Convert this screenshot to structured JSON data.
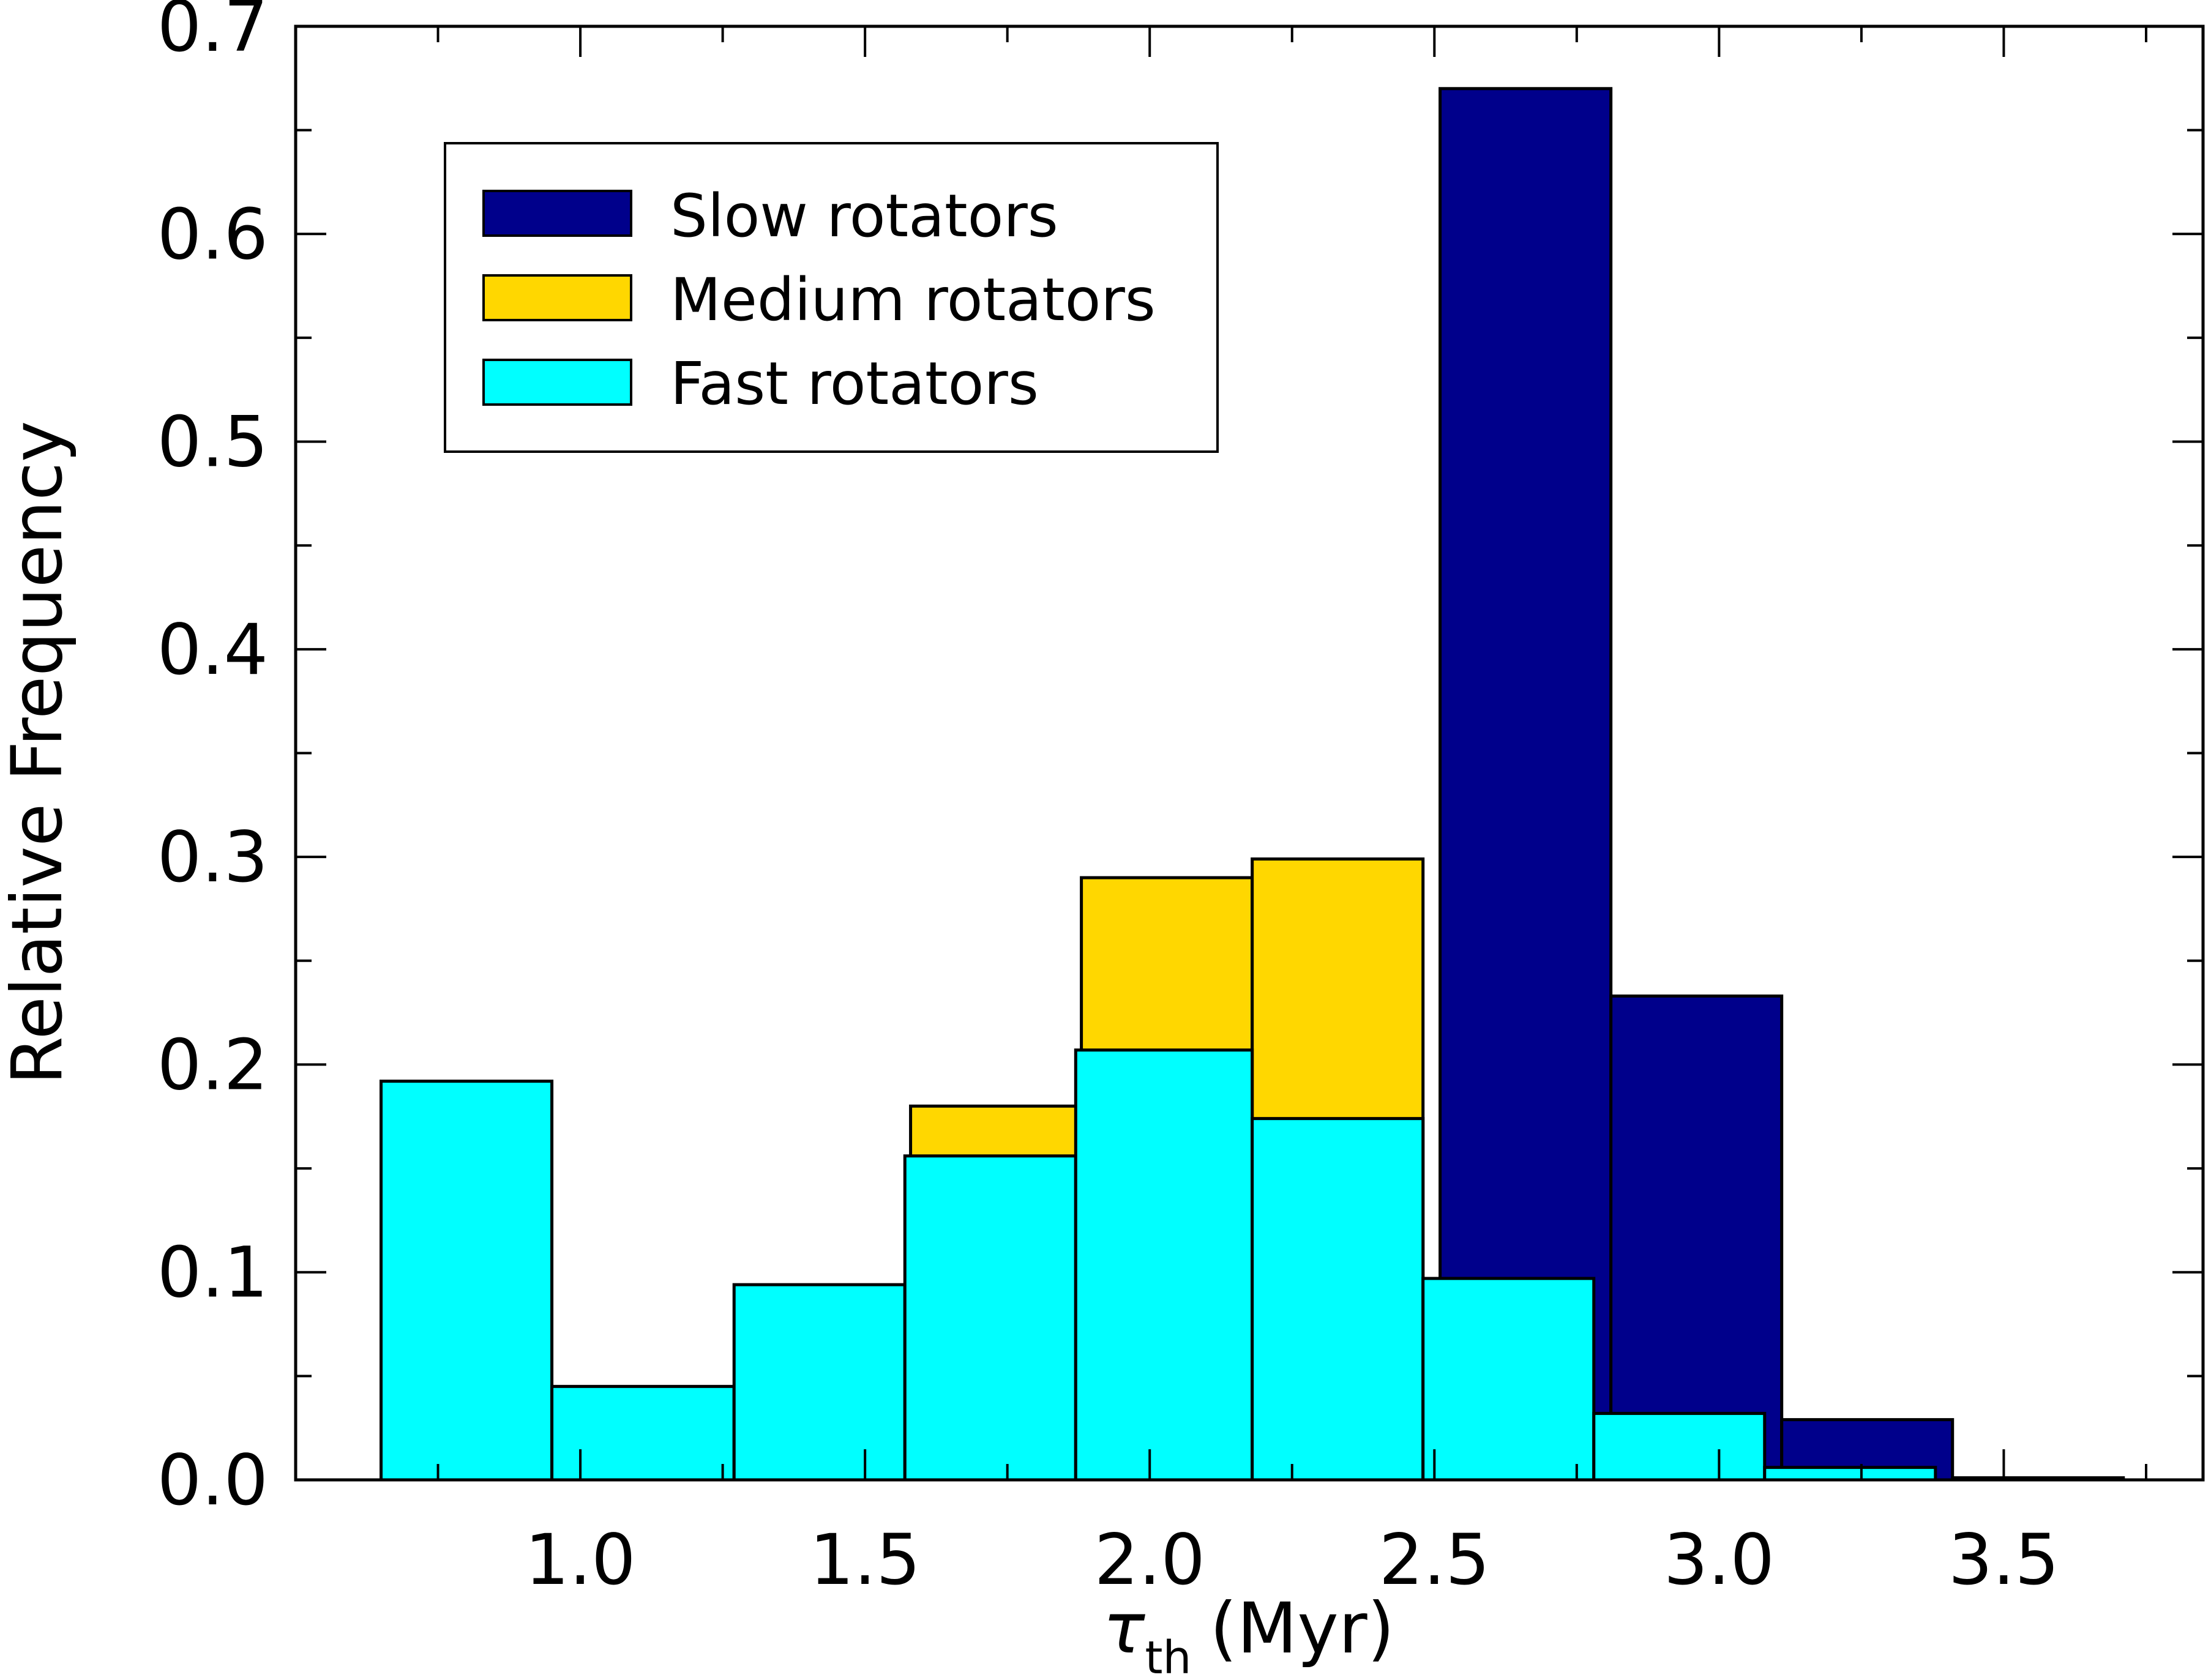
{
  "chart_data": {
    "type": "bar",
    "title": "",
    "xlabel": {
      "symbol": "τ",
      "subscript": "th",
      "unit": "(Myr)"
    },
    "ylabel": "Relative Frequency",
    "xlim": [
      0.5,
      3.85
    ],
    "ylim": [
      0.0,
      0.7
    ],
    "xticks": [
      1.0,
      1.5,
      2.0,
      2.5,
      3.0,
      3.5
    ],
    "xtick_labels": [
      "1.0",
      "1.5",
      "2.0",
      "2.5",
      "3.0",
      "3.5"
    ],
    "yticks": [
      0.0,
      0.1,
      0.2,
      0.3,
      0.4,
      0.5,
      0.6,
      0.7
    ],
    "ytick_labels": [
      "0.0",
      "0.1",
      "0.2",
      "0.3",
      "0.4",
      "0.5",
      "0.6",
      "0.7"
    ],
    "legend_position": "upper-left",
    "series": [
      {
        "name": "Slow rotators",
        "color": "#00008b",
        "bins": [
          {
            "x0": 2.51,
            "x1": 2.81,
            "value": 0.67
          },
          {
            "x0": 2.81,
            "x1": 3.11,
            "value": 0.233
          },
          {
            "x0": 3.11,
            "x1": 3.41,
            "value": 0.029
          },
          {
            "x0": 3.41,
            "x1": 3.71,
            "value": 0.001
          }
        ]
      },
      {
        "name": "Medium rotators",
        "color": "#ffd700",
        "bins": [
          {
            "x0": 1.58,
            "x1": 1.88,
            "value": 0.18
          },
          {
            "x0": 1.88,
            "x1": 2.18,
            "value": 0.29
          },
          {
            "x0": 2.18,
            "x1": 2.48,
            "value": 0.299
          }
        ]
      },
      {
        "name": "Fast rotators",
        "color": "#00ffff",
        "bins": [
          {
            "x0": 0.65,
            "x1": 0.95,
            "value": 0.192
          },
          {
            "x0": 0.95,
            "x1": 1.27,
            "value": 0.045
          },
          {
            "x0": 1.27,
            "x1": 1.57,
            "value": 0.094
          },
          {
            "x0": 1.57,
            "x1": 1.87,
            "value": 0.156
          },
          {
            "x0": 1.87,
            "x1": 2.18,
            "value": 0.207
          },
          {
            "x0": 2.18,
            "x1": 2.48,
            "value": 0.174
          },
          {
            "x0": 2.48,
            "x1": 2.78,
            "value": 0.097
          },
          {
            "x0": 2.78,
            "x1": 3.08,
            "value": 0.032
          },
          {
            "x0": 3.08,
            "x1": 3.38,
            "value": 0.006
          }
        ]
      }
    ]
  }
}
